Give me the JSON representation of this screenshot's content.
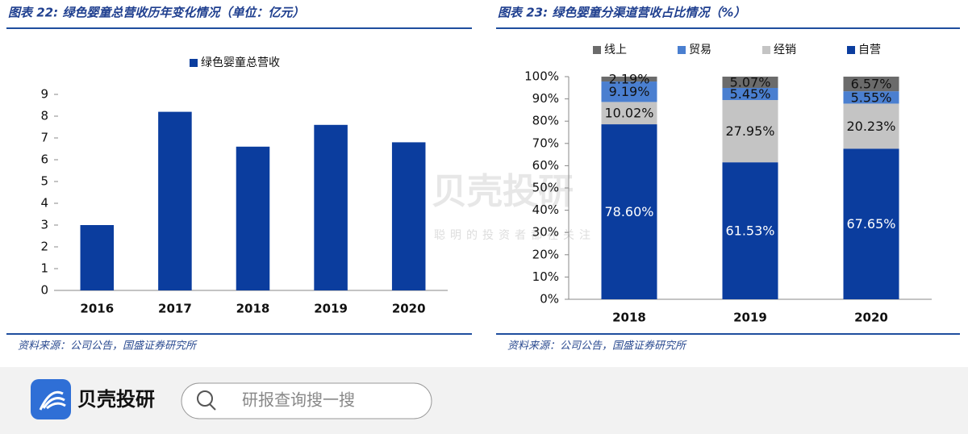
{
  "chart_data": [
    {
      "type": "bar",
      "title": "图表 22: 绿色婴童总营收历年变化情况（单位：亿元）",
      "categories": [
        "2016",
        "2017",
        "2018",
        "2019",
        "2020"
      ],
      "series": [
        {
          "name": "绿色婴童总营收",
          "color": "#0b3d9e",
          "values": [
            3.0,
            8.2,
            6.6,
            7.6,
            6.8
          ]
        }
      ],
      "ylim": [
        0,
        9
      ],
      "yticks": [
        0,
        1,
        2,
        3,
        4,
        5,
        6,
        7,
        8,
        9
      ],
      "source": "资料来源：公司公告，国盛证券研究所"
    },
    {
      "type": "bar",
      "stacked": true,
      "title": "图表 23: 绿色婴童分渠道营收占比情况（%）",
      "categories": [
        "2018",
        "2019",
        "2020"
      ],
      "series": [
        {
          "name": "线上",
          "color": "#6b6b6b",
          "values": [
            2.19,
            5.07,
            6.57
          ],
          "value_labels": [
            "2.19%",
            "5.07%",
            "6.57%"
          ]
        },
        {
          "name": "贸易",
          "color": "#4a7fd0",
          "values": [
            9.19,
            5.45,
            5.55
          ],
          "value_labels": [
            "9.19%",
            "5.45%",
            "5.55%"
          ]
        },
        {
          "name": "经销",
          "color": "#c4c4c4",
          "values": [
            10.02,
            27.95,
            20.23
          ],
          "value_labels": [
            "10.02%",
            "27.95%",
            "20.23%"
          ]
        },
        {
          "name": "自营",
          "color": "#0b3d9e",
          "values": [
            78.6,
            61.53,
            67.65
          ],
          "value_labels": [
            "78.60%",
            "61.53%",
            "67.65%"
          ]
        }
      ],
      "ylim": [
        0,
        100
      ],
      "yticks": [
        {
          "value": 0,
          "label": "0%"
        },
        {
          "value": 10,
          "label": "10%"
        },
        {
          "value": 20,
          "label": "20%"
        },
        {
          "value": 30,
          "label": "30%"
        },
        {
          "value": 40,
          "label": "40%"
        },
        {
          "value": 50,
          "label": "50%"
        },
        {
          "value": 60,
          "label": "60%"
        },
        {
          "value": 70,
          "label": "70%"
        },
        {
          "value": 80,
          "label": "80%"
        },
        {
          "value": 90,
          "label": "90%"
        },
        {
          "value": 100,
          "label": "100%"
        }
      ],
      "source": "资料来源：公司公告，国盛证券研究所"
    }
  ],
  "watermark": {
    "brand": "贝壳投研",
    "slogan": "聪明的投资者都在关注"
  },
  "footer": {
    "brand": "贝壳投研",
    "search_placeholder": "研报查询搜一搜"
  }
}
